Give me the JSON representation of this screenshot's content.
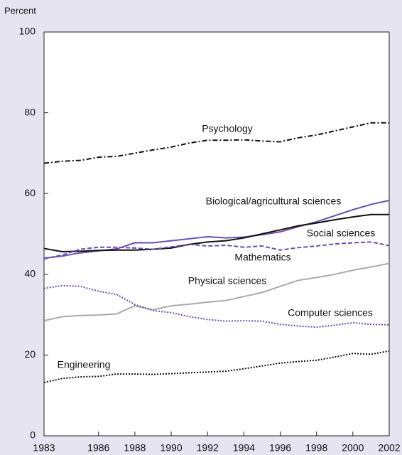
{
  "chart_data": {
    "type": "line",
    "ylabel": "Percent",
    "x": [
      1983,
      1984,
      1985,
      1986,
      1987,
      1988,
      1989,
      1990,
      1991,
      1992,
      1993,
      1994,
      1995,
      1996,
      1997,
      1998,
      1999,
      2000,
      2001,
      2002
    ],
    "xlim": [
      1983,
      2002
    ],
    "xticks": [
      1983,
      1986,
      1988,
      1990,
      1992,
      1994,
      1996,
      1998,
      2000,
      2002
    ],
    "ylim": [
      0,
      100
    ],
    "yticks": [
      0,
      20,
      40,
      60,
      80,
      100
    ],
    "series": [
      {
        "name": "Psychology",
        "color": "#111111",
        "style": "dashdot",
        "values": [
          67.5,
          68,
          68.2,
          69,
          69.2,
          70,
          70.8,
          71.5,
          72.5,
          73.2,
          73.2,
          73.3,
          73,
          72.8,
          73.8,
          74.5,
          75.5,
          76.5,
          77.5,
          77.5
        ]
      },
      {
        "name": "Biological/agricultural sciences",
        "color": "#6a4fb0",
        "style": "solid",
        "values": [
          44,
          44.5,
          45.3,
          45.8,
          46.3,
          47.8,
          47.8,
          48.3,
          48.8,
          49.3,
          49,
          49.2,
          49.8,
          50.5,
          51.8,
          53,
          54.5,
          56,
          57.3,
          58.3
        ]
      },
      {
        "name": "Social sciences",
        "color": "#111111",
        "style": "solid",
        "values": [
          46.4,
          45.6,
          45.7,
          45.9,
          46,
          46,
          46.2,
          46.5,
          47.4,
          48,
          48.3,
          49,
          50,
          51,
          52,
          52.7,
          53.5,
          54.2,
          54.8,
          54.8
        ]
      },
      {
        "name": "Mathematics",
        "color": "#6a4fb0",
        "style": "dashed",
        "values": [
          43.8,
          44.8,
          46.2,
          46.7,
          46.7,
          46.5,
          46.2,
          46.8,
          47.4,
          47,
          47.2,
          46.7,
          47,
          46,
          46.6,
          47,
          47.5,
          47.8,
          48,
          47.1
        ]
      },
      {
        "name": "Physical sciences",
        "color": "#aaaaaa",
        "style": "solid",
        "values": [
          28.5,
          29.5,
          29.8,
          29.9,
          30.2,
          32.2,
          31.2,
          32.2,
          32.6,
          33.1,
          33.5,
          34.5,
          35.5,
          37,
          38.5,
          39.2,
          40,
          41,
          41.8,
          42.7
        ]
      },
      {
        "name": "Computer sciences",
        "color": "#6a4fb0",
        "style": "dotted",
        "values": [
          36.5,
          37.2,
          37,
          35.8,
          35,
          32.5,
          31,
          30.5,
          29.5,
          28.8,
          28.4,
          28.5,
          28.4,
          27.6,
          27.2,
          26.9,
          27.4,
          28,
          27.6,
          27.5
        ]
      },
      {
        "name": "Engineering",
        "color": "#111111",
        "style": "dotted",
        "values": [
          13.2,
          14.2,
          14.6,
          14.7,
          15.3,
          15.3,
          15.2,
          15.4,
          15.6,
          15.8,
          16,
          16.6,
          17.3,
          18,
          18.4,
          18.7,
          19.5,
          20.4,
          20.2,
          21
        ]
      }
    ]
  }
}
